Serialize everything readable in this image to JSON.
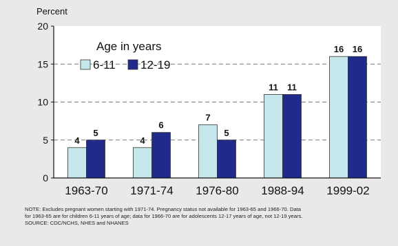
{
  "chart_data": {
    "type": "bar",
    "title": "",
    "ylabel": "Percent",
    "xlabel": "",
    "ylim": [
      0,
      20
    ],
    "yticks": [
      0,
      5,
      10,
      15,
      20
    ],
    "grid": "dashed horizontal",
    "categories": [
      "1963-70",
      "1971-74",
      "1976-80",
      "1988-94",
      "1999-02"
    ],
    "legend_title": "Age in years",
    "legend_position": "top-left",
    "series": [
      {
        "name": "6-11",
        "color": "#c5e6ea",
        "values": [
          4,
          4,
          7,
          11,
          16
        ]
      },
      {
        "name": "12-19",
        "color": "#1f2a8a",
        "values": [
          5,
          6,
          5,
          11,
          16
        ]
      }
    ]
  },
  "note": {
    "lines": [
      "NOTE:  Excludes pregnant women starting with 1971-74.  Pregnancy status not available for 1963-65 and 1966-70.  Data",
      "for 1963-65 are for children 6-11 years of age; data for 1966-70 are for adolescents 12-17 years of age, not 12-19 years.",
      "SOURCE: CDC/NCHS, NHES and NHANES"
    ]
  },
  "colors": {
    "background": "#e9e9e9",
    "plot_bg": "#ffffff",
    "grid": "#777777"
  }
}
